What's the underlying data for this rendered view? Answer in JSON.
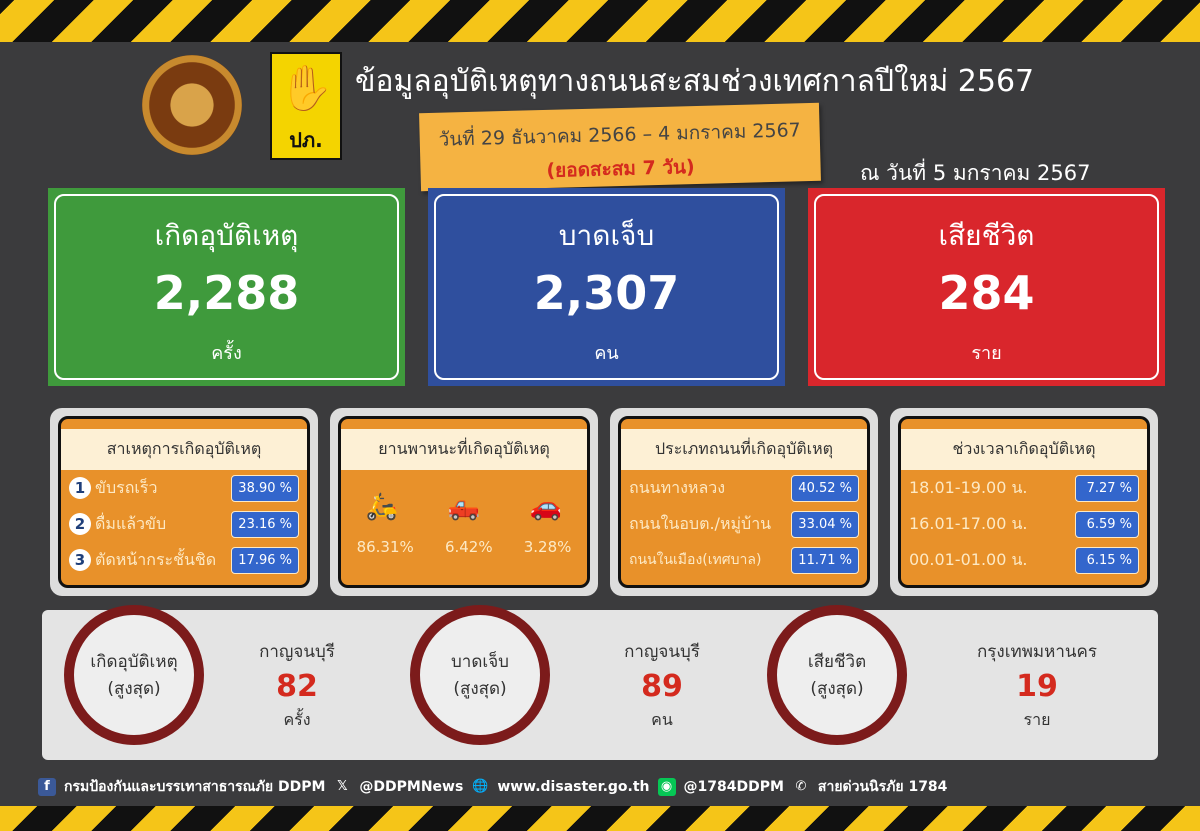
{
  "header": {
    "title": "ข้อมูลอุบัติเหตุทางถนนสะสมช่วงเทศกาลปีใหม่ 2567",
    "date_range": "วันที่ 29 ธันวาคม 2566 – 4 มกราคม 2567",
    "cumulative": "(ยอดสะสม 7 วัน)",
    "as_of": "ณ วันที่ 5 มกราคม 2567",
    "logo2_text": "ปภ."
  },
  "totals": [
    {
      "label": "เกิดอุบัติเหตุ",
      "value": "2,288",
      "unit": "ครั้ง",
      "color": "#3f9a3c"
    },
    {
      "label": "บาดเจ็บ",
      "value": "2,307",
      "unit": "คน",
      "color": "#2f4f9e"
    },
    {
      "label": "เสียชีวิต",
      "value": "284",
      "unit": "ราย",
      "color": "#d9262c"
    }
  ],
  "causes": {
    "title": "สาเหตุการเกิดอุบัติเหตุ",
    "items": [
      {
        "n": "1",
        "label": "ขับรถเร็ว",
        "pct": "38.90 %"
      },
      {
        "n": "2",
        "label": "ดื่มแล้วขับ",
        "pct": "23.16 %"
      },
      {
        "n": "3",
        "label": "ตัดหน้ากระชั้นชิด",
        "pct": "17.96 %"
      }
    ]
  },
  "vehicles": {
    "title": "ยานพาหนะที่เกิดอุบัติเหตุ",
    "items": [
      {
        "icon": "motorcycle-icon",
        "pct": "86.31%"
      },
      {
        "icon": "pickup-truck-icon",
        "pct": "6.42%"
      },
      {
        "icon": "car-icon",
        "pct": "3.28%"
      }
    ]
  },
  "roads": {
    "title": "ประเภทถนนที่เกิดอุบัติเหตุ",
    "items": [
      {
        "label": "ถนนทางหลวง",
        "pct": "40.52 %"
      },
      {
        "label": "ถนนในอบต./หมู่บ้าน",
        "pct": "33.04 %"
      },
      {
        "label": "ถนนในเมือง(เทศบาล)",
        "pct": "11.71 %"
      }
    ]
  },
  "times": {
    "title": "ช่วงเวลาเกิดอุบัติเหตุ",
    "items": [
      {
        "label": "18.01-19.00 น.",
        "pct": "7.27 %"
      },
      {
        "label": "16.01-17.00 น.",
        "pct": "6.59 %"
      },
      {
        "label": "00.01-01.00 น.",
        "pct": "6.15 %"
      }
    ]
  },
  "highest": [
    {
      "l1": "เกิดอุบัติเหตุ",
      "l2": "(สูงสุด)",
      "province": "กาญจนบุรี",
      "value": "82",
      "unit": "ครั้ง"
    },
    {
      "l1": "บาดเจ็บ",
      "l2": "(สูงสุด)",
      "province": "กาญจนบุรี",
      "value": "89",
      "unit": "คน"
    },
    {
      "l1": "เสียชีวิต",
      "l2": "(สูงสุด)",
      "province": "กรุงเทพมหานคร",
      "value": "19",
      "unit": "ราย"
    }
  ],
  "footer": {
    "facebook": "กรมป้องกันและบรรเทาสาธารณภัย DDPM",
    "x": "@DDPMNews",
    "web": "www.disaster.go.th",
    "line": "@1784DDPM",
    "hotline": "สายด่วนนิรภัย 1784"
  }
}
